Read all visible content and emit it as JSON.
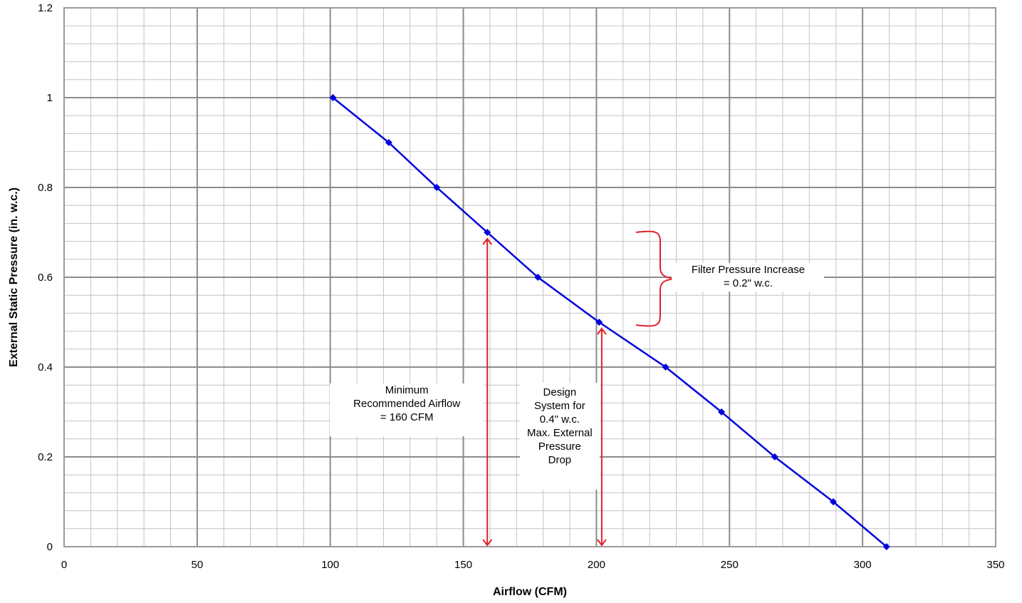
{
  "chart_data": {
    "type": "line",
    "title": "",
    "xlabel": "Airflow (CFM)",
    "ylabel": "External Static Pressure (in. w.c.)",
    "xlim": [
      0,
      350
    ],
    "ylim": [
      0,
      1.2
    ],
    "x_ticks": [
      0,
      50,
      100,
      150,
      200,
      250,
      300,
      350
    ],
    "y_ticks": [
      0,
      0.2,
      0.4,
      0.6,
      0.8,
      1,
      1.2
    ],
    "x_tick_labels": [
      "0",
      "50",
      "100",
      "150",
      "200",
      "250",
      "300",
      "350"
    ],
    "y_tick_labels": [
      "0",
      "0.2",
      "0.4",
      "0.6",
      "0.8",
      "1",
      "1.2"
    ],
    "grid": true,
    "series": [
      {
        "color": "#0000dd",
        "marker": "diamond",
        "x": [
          101,
          122,
          140,
          159,
          178,
          201,
          226,
          247,
          267,
          289,
          309
        ],
        "y": [
          1.0,
          0.9,
          0.8,
          0.7,
          0.6,
          0.5,
          0.4,
          0.3,
          0.2,
          0.1,
          0.0
        ]
      }
    ],
    "annotations": [
      {
        "id": "min-airflow",
        "text": "Minimum\nRecommended Airflow\n= 160 CFM",
        "x": 159,
        "y_from": 0,
        "y_to": 0.7,
        "color": "#e0202a"
      },
      {
        "id": "design-system",
        "text": "Design\nSystem for\n0.4\" w.c.\nMax. External\nPressure\nDrop",
        "x": 202,
        "y_from": 0,
        "y_to": 0.5,
        "color": "#e0202a"
      },
      {
        "id": "filter-pressure",
        "text": "Filter Pressure Increase\n= 0.2\" w.c.",
        "x": 225,
        "y_from": 0.5,
        "y_to": 0.7,
        "color": "#e0202a"
      }
    ]
  }
}
